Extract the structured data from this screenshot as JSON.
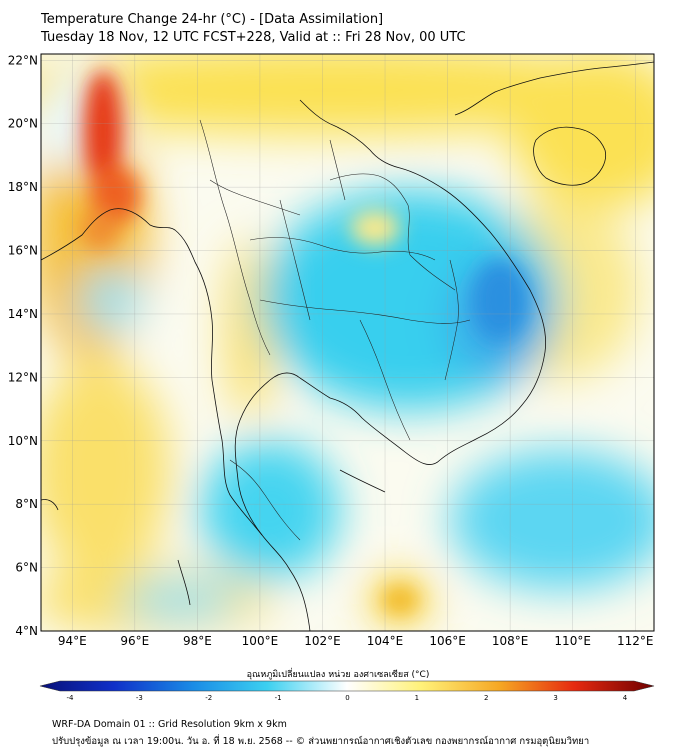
{
  "header": {
    "title": "Temperature Change 24-hr (°C) - [Data Assimilation]",
    "subtitle": "Tuesday 18 Nov, 12 UTC FCST+228, Valid at :: Fri 28 Nov, 00 UTC"
  },
  "map": {
    "lon_ticks": [
      "94°E",
      "96°E",
      "98°E",
      "100°E",
      "102°E",
      "104°E",
      "106°E",
      "108°E",
      "110°E",
      "112°E"
    ],
    "lat_ticks": [
      "22°N",
      "20°N",
      "18°N",
      "16°N",
      "14°N",
      "12°N",
      "10°N",
      "8°N",
      "6°N",
      "4°N"
    ],
    "lon_values": [
      94,
      96,
      98,
      100,
      102,
      104,
      106,
      108,
      110,
      112
    ],
    "lat_values": [
      22,
      20,
      18,
      16,
      14,
      12,
      10,
      8,
      6,
      4
    ],
    "lon_range": [
      93,
      112.6
    ],
    "lat_range": [
      4,
      22.2
    ],
    "colorbar_label": "อุณหภูมิเปลี่ยนแปลง หน่วย องศาเซลเซียส (°C)",
    "colorbar_ticks": [
      "-4",
      "-3",
      "-2",
      "-1",
      "0",
      "1",
      "2",
      "3",
      "4"
    ],
    "colorbar_values": [
      -4,
      -3,
      -2,
      -1,
      0,
      1,
      2,
      3,
      4
    ]
  },
  "colors": {
    "cold_extreme": "#081078",
    "cold": "#1ec8ee",
    "neutral": "#ffffff",
    "warm": "#fae34a",
    "hot": "#e62a10",
    "hot_extreme": "#6e0000"
  },
  "footer": {
    "line1": "WRF-DA Domain 01 :: Grid Resolution 9km x 9km",
    "line2": "ปรับปรุงข้อมูล ณ เวลา 19:00น. วัน อ. ที่ 18 พ.ย. 2568 -- © ส่วนพยากรณ์อากาศเชิงตัวเลข กองพยากรณ์อากาศ กรมอุตุนิยมวิทยา"
  }
}
